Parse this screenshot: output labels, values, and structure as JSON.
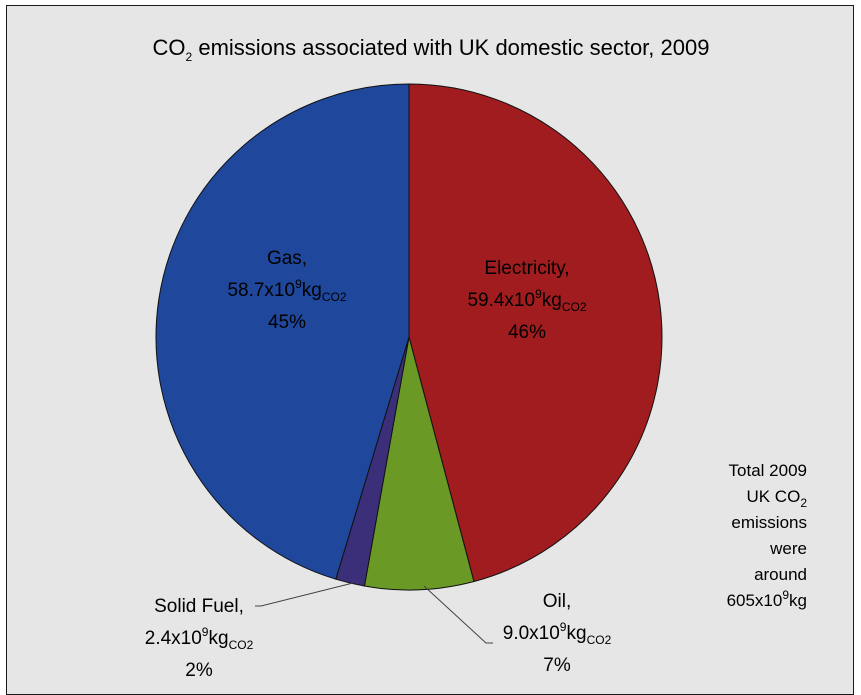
{
  "chart_data": {
    "type": "pie",
    "title": {
      "main": "CO",
      "sub": "2",
      "rest": " emissions associated with UK domestic sector, 2009"
    },
    "slices": [
      {
        "name": "Electricity",
        "value": 59.4,
        "percent": "46%",
        "color": "#a11c1e",
        "label": {
          "name": "Electricity,",
          "value": "59.4x10",
          "exp": "9",
          "unit": "kg",
          "unit_sub": "CO2",
          "pct": "46%"
        }
      },
      {
        "name": "Oil",
        "value": 9.0,
        "percent": "7%",
        "color": "#6a9a25",
        "label": {
          "name": "Oil,",
          "value": "9.0x10",
          "exp": "9",
          "unit": "kg",
          "unit_sub": "CO2",
          "pct": "7%"
        }
      },
      {
        "name": "Solid Fuel",
        "value": 2.4,
        "percent": "2%",
        "color": "#3b2f7a",
        "label": {
          "name": "Solid Fuel,",
          "value": "2.4x10",
          "exp": "9",
          "unit": "kg",
          "unit_sub": "CO2",
          "pct": "2%"
        }
      },
      {
        "name": "Gas",
        "value": 58.7,
        "percent": "45%",
        "color": "#1f479c",
        "label": {
          "name": "Gas,",
          "value": "58.7x10",
          "exp": "9",
          "unit": "kg",
          "unit_sub": "CO2",
          "pct": "45%"
        }
      }
    ],
    "units": "x10^9 kg CO2",
    "note": {
      "line1": "Total 2009",
      "line2_main": "UK CO",
      "line2_sub": "2",
      "line3": "emissions",
      "line4": "were",
      "line5": "around",
      "line6_value": "605x10",
      "line6_exp": "9",
      "line6_unit": "kg"
    }
  },
  "colors": {
    "background": "#e6e6e6",
    "border": "#1a1a1a"
  }
}
